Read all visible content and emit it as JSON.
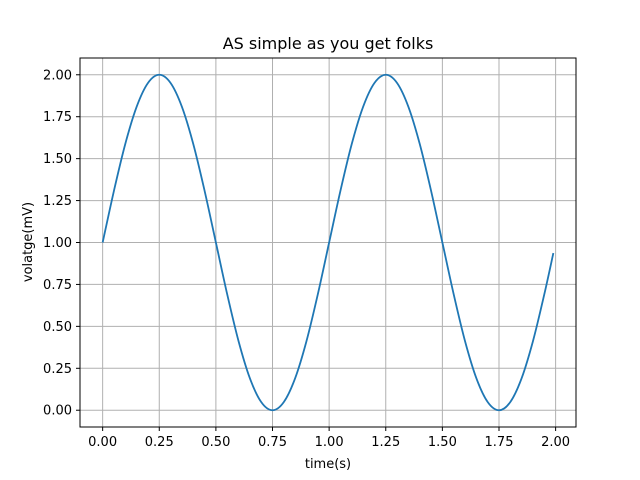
{
  "chart_data": {
    "type": "line",
    "title": "AS simple as you get folks",
    "xlabel": "time(s)",
    "ylabel": "volatge(mV)",
    "xlim": [
      -0.1,
      2.09
    ],
    "ylim": [
      -0.1,
      2.1
    ],
    "x_ticks": [
      0.0,
      0.25,
      0.5,
      0.75,
      1.0,
      1.25,
      1.5,
      1.75,
      2.0
    ],
    "x_tick_labels": [
      "0.00",
      "0.25",
      "0.50",
      "0.75",
      "1.00",
      "1.25",
      "1.50",
      "1.75",
      "2.00"
    ],
    "y_ticks": [
      0.0,
      0.25,
      0.5,
      0.75,
      1.0,
      1.25,
      1.5,
      1.75,
      2.0
    ],
    "y_tick_labels": [
      "0.00",
      "0.25",
      "0.50",
      "0.75",
      "1.00",
      "1.25",
      "1.50",
      "1.75",
      "2.00"
    ],
    "grid": true,
    "legend": false,
    "line_color": "#1f77b4",
    "series": [
      {
        "x": [
          0.0,
          0.05,
          0.1,
          0.15,
          0.2,
          0.25,
          0.3,
          0.35,
          0.4,
          0.45,
          0.5,
          0.55,
          0.6,
          0.65,
          0.7,
          0.75,
          0.8,
          0.85,
          0.9,
          0.95,
          1.0,
          1.05,
          1.1,
          1.15,
          1.2,
          1.25,
          1.3,
          1.35,
          1.4,
          1.45,
          1.5,
          1.55,
          1.6,
          1.65,
          1.7,
          1.75,
          1.8,
          1.85,
          1.9,
          1.95,
          1.99
        ],
        "y": [
          1.0,
          1.309,
          1.588,
          1.809,
          1.951,
          2.0,
          1.951,
          1.809,
          1.588,
          1.309,
          1.0,
          0.691,
          0.412,
          0.191,
          0.049,
          0.0,
          0.049,
          0.191,
          0.412,
          0.691,
          1.0,
          1.309,
          1.588,
          1.809,
          1.951,
          2.0,
          1.951,
          1.809,
          1.588,
          1.309,
          1.0,
          0.691,
          0.412,
          0.191,
          0.049,
          0.0,
          0.049,
          0.191,
          0.412,
          0.691,
          0.937
        ]
      }
    ]
  }
}
